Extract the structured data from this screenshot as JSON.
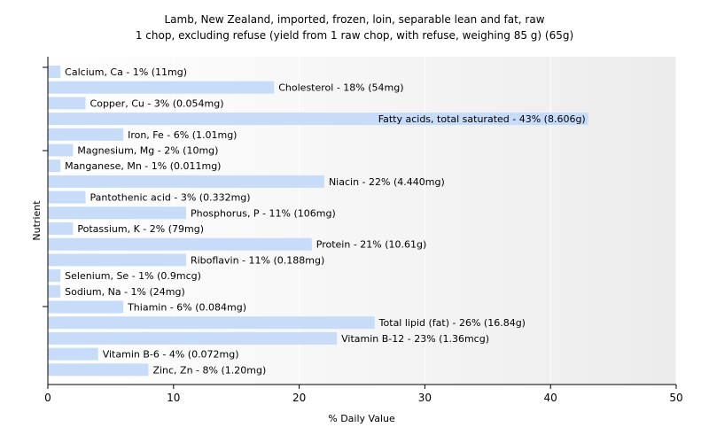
{
  "chart_data": {
    "type": "bar",
    "orientation": "horizontal",
    "title": "Lamb, New Zealand, imported, frozen, loin, separable lean and fat, raw",
    "subtitle": "1 chop, excluding refuse (yield from 1 raw chop, with refuse, weighing 85 g) (65g)",
    "xlabel": "% Daily Value",
    "ylabel": "Nutrient",
    "xlim": [
      0,
      50
    ],
    "xticks": [
      "0",
      "10",
      "20",
      "30",
      "40",
      "50"
    ],
    "grid": "vertical",
    "colors": {
      "bar": "#c6dcf8",
      "plot_bg_left": "#ffffff",
      "plot_bg_right": "#ececec",
      "grid": "#ffffff",
      "axis": "#000000"
    },
    "categories": [
      "Calcium, Ca",
      "Cholesterol",
      "Copper, Cu",
      "Fatty acids, total saturated",
      "Iron, Fe",
      "Magnesium, Mg",
      "Manganese, Mn",
      "Niacin",
      "Pantothenic acid",
      "Phosphorus, P",
      "Potassium, K",
      "Protein",
      "Riboflavin",
      "Selenium, Se",
      "Sodium, Na",
      "Thiamin",
      "Total lipid (fat)",
      "Vitamin B-12",
      "Vitamin B-6",
      "Zinc, Zn"
    ],
    "values": [
      1,
      18,
      3,
      43,
      6,
      2,
      1,
      22,
      3,
      11,
      2,
      21,
      11,
      1,
      1,
      6,
      26,
      23,
      4,
      8
    ],
    "labels": [
      "Calcium, Ca - 1% (11mg)",
      "Cholesterol - 18% (54mg)",
      "Copper, Cu - 3% (0.054mg)",
      "Fatty acids, total saturated - 43% (8.606g)",
      "Iron, Fe - 6% (1.01mg)",
      "Magnesium, Mg - 2% (10mg)",
      "Manganese, Mn - 1% (0.011mg)",
      "Niacin - 22% (4.440mg)",
      "Pantothenic acid - 3% (0.332mg)",
      "Phosphorus, P - 11% (106mg)",
      "Potassium, K - 2% (79mg)",
      "Protein - 21% (10.61g)",
      "Riboflavin - 11% (0.188mg)",
      "Selenium, Se - 1% (0.9mcg)",
      "Sodium, Na - 1% (24mg)",
      "Thiamin - 6% (0.084mg)",
      "Total lipid (fat) - 26% (16.84g)",
      "Vitamin B-12 - 23% (1.36mcg)",
      "Vitamin B-6 - 4% (0.072mg)",
      "Zinc, Zn - 8% (1.20mg)"
    ]
  }
}
